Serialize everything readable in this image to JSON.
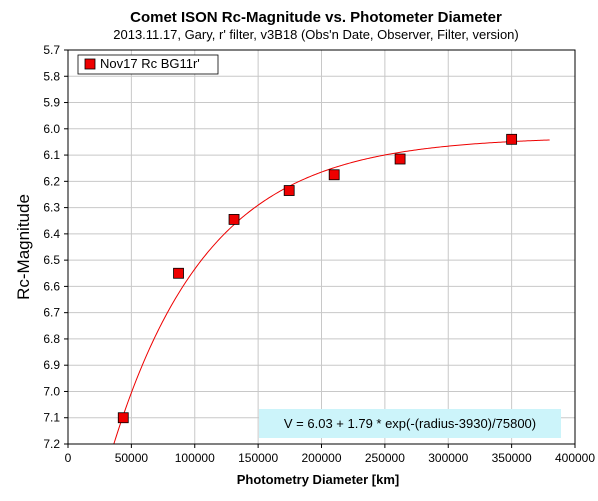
{
  "chart_data": {
    "type": "scatter",
    "title": "Comet ISON Rc-Magnitude vs. Photometer Diameter",
    "subtitle": "2013.11.17,  Gary,  r' filter,  v3B18  (Obs'n Date, Observer, Filter, version)",
    "xlabel": "Photometry Diameter  [km]",
    "ylabel": "Rc-Magnitude",
    "xlim": [
      0,
      400000
    ],
    "ylim": [
      5.7,
      7.2
    ],
    "y_inverted": true,
    "grid": true,
    "legend_position": "top-left",
    "x_ticks": [
      "0",
      "50000",
      "100000",
      "150000",
      "200000",
      "250000",
      "300000",
      "350000",
      "400000"
    ],
    "y_ticks": [
      "5.7",
      "5.8",
      "5.9",
      "6.0",
      "6.1",
      "6.2",
      "6.3",
      "6.4",
      "6.5",
      "6.6",
      "6.7",
      "6.8",
      "6.9",
      "7.0",
      "7.1",
      "7.2"
    ],
    "series": [
      {
        "name": "Nov17 Rc BG11r'",
        "color": "#ee0000",
        "marker": "square",
        "x": [
          43600,
          87200,
          131000,
          174500,
          210000,
          262000,
          350000
        ],
        "y": [
          7.1,
          6.55,
          6.345,
          6.235,
          6.175,
          6.115,
          6.04
        ]
      }
    ],
    "fit": {
      "color": "#ee0000",
      "V0": 6.03,
      "A": 1.79,
      "r0": 3930,
      "scale": 75800,
      "x_start": 35500,
      "x_end": 380000
    },
    "annotation": "V = 6.03 + 1.79 * exp(-(radius-3930)/75800)",
    "annotation_bg": "#ccf4fa"
  }
}
